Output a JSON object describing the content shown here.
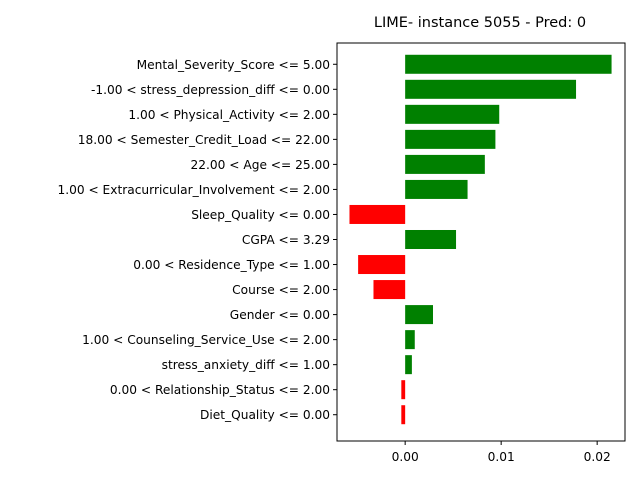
{
  "chart_data": {
    "type": "bar",
    "orientation": "horizontal",
    "title": "LIME- instance 5055 - Pred: 0",
    "xlabel": "",
    "ylabel": "",
    "xlim": [
      -0.0071,
      0.0229
    ],
    "xticks": [
      0.0,
      0.01,
      0.02
    ],
    "xtick_labels": [
      "0.00",
      "0.01",
      "0.02"
    ],
    "grid": false,
    "legend": "none",
    "colors": {
      "positive": "#008000",
      "negative": "#ff0000"
    },
    "categories": [
      "Mental_Severity_Score <= 5.00",
      "-1.00 < stress_depression_diff <= 0.00",
      "1.00 < Physical_Activity <= 2.00",
      "18.00 < Semester_Credit_Load <= 22.00",
      "22.00 < Age <= 25.00",
      "1.00 < Extracurricular_Involvement <= 2.00",
      "Sleep_Quality <= 0.00",
      "CGPA <= 3.29",
      "0.00 < Residence_Type <= 1.00",
      "Course <= 2.00",
      "Gender <= 0.00",
      "1.00 < Counseling_Service_Use <= 2.00",
      "stress_anxiety_diff <= 1.00",
      "0.00 < Relationship_Status <= 2.00",
      "Diet_Quality <= 0.00"
    ],
    "values": [
      0.0215,
      0.0178,
      0.0098,
      0.0094,
      0.0083,
      0.0065,
      -0.0058,
      0.0053,
      -0.0049,
      -0.0033,
      0.0029,
      0.001,
      0.0007,
      -0.0004,
      -0.0004
    ]
  }
}
